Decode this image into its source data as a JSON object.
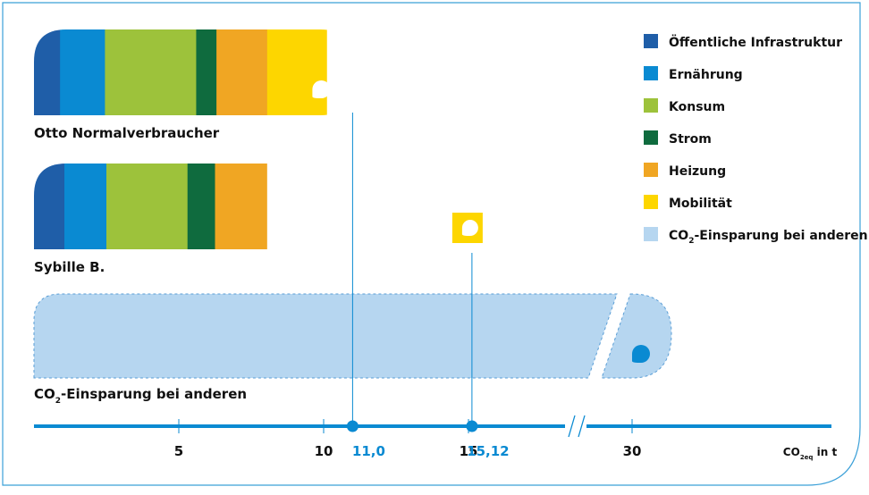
{
  "chart_data": {
    "type": "bar",
    "title": "",
    "bars": [
      {
        "name": "Otto Normalverbraucher",
        "segments": [
          {
            "category": "Öffentliche Infrastruktur",
            "value": 0.9
          },
          {
            "category": "Ernährung",
            "value": 1.55
          },
          {
            "category": "Konsum",
            "value": 3.15
          },
          {
            "category": "Strom",
            "value": 0.7
          },
          {
            "category": "Heizung",
            "value": 1.75
          },
          {
            "category": "Mobilität",
            "value": 2.05
          }
        ],
        "total": 11.0,
        "has_drop_icon": true
      },
      {
        "name": "Sybille B.",
        "segments": [
          {
            "category": "Öffentliche Infrastruktur",
            "value": 1.05
          },
          {
            "category": "Ernährung",
            "value": 1.45
          },
          {
            "category": "Konsum",
            "value": 2.8
          },
          {
            "category": "Strom",
            "value": 0.95
          },
          {
            "category": "Heizung",
            "value": 1.8
          }
        ],
        "total": 8.05,
        "has_drop_icon": false
      }
    ],
    "savings": {
      "label_main": "CO",
      "label_sub": "2",
      "label_rest": "-Einsparung bei anderen",
      "value": 30.0,
      "axis_break": true
    },
    "mobility_marker": {
      "value": 15.12,
      "icon": "drop-icon"
    },
    "legend": [
      {
        "label": "Öffentliche Infrastruktur",
        "color": "#1f5ea8"
      },
      {
        "label": "Ernährung",
        "color": "#0a8ad2"
      },
      {
        "label": "Konsum",
        "color": "#9dc23b"
      },
      {
        "label": "Strom",
        "color": "#0f6b3e"
      },
      {
        "label": "Heizung",
        "color": "#f0a623"
      },
      {
        "label": "Mobilität",
        "color": "#fdd600"
      },
      {
        "label_main": "CO",
        "label_sub": "2",
        "label_rest": "-Einsparung bei anderen",
        "color": "#b6d6f0"
      }
    ],
    "axis": {
      "ticks": [
        {
          "value": 5,
          "label": "5"
        },
        {
          "value": 10,
          "label": "10"
        },
        {
          "value": 15,
          "label": "15"
        },
        {
          "value": 30,
          "label": "30"
        }
      ],
      "markers": [
        {
          "value": 11.0,
          "label": "11,0"
        },
        {
          "value": 15.12,
          "label": "15,12"
        }
      ],
      "unit_main": "CO",
      "unit_sub": "2eq",
      "unit_rest": " in t",
      "break_between": [
        20,
        30
      ]
    },
    "colors": {
      "axis": "#0a8ad2",
      "marker_label": "#0a8ad2",
      "frame": "#3ba0d8",
      "savings_fill": "#b6d6f0",
      "savings_stroke": "#5a9ed6"
    }
  }
}
